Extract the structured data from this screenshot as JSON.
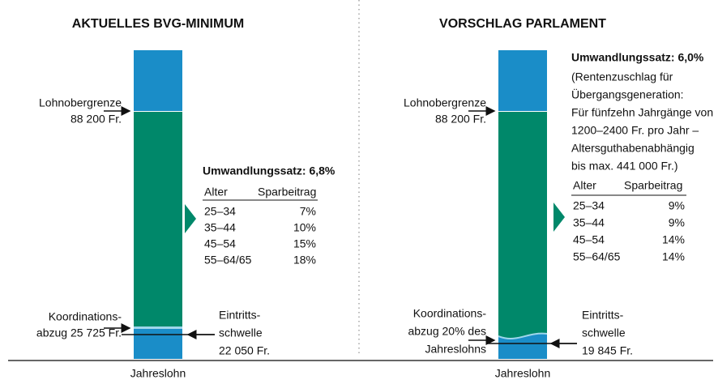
{
  "left": {
    "title": "AKTUELLES BVG-MINIMUM",
    "upper_limit": [
      "Lohnobergrenze",
      "88 200 Fr."
    ],
    "coordination": [
      "Koordinations-",
      "abzug 25 725 Fr."
    ],
    "threshold": [
      "Eintritts-",
      "schwelle",
      "22 050 Fr."
    ],
    "rate": "Umwandlungssatz: 6,8%",
    "table": {
      "header": [
        "Alter",
        "Sparbeitrag"
      ],
      "rows": [
        [
          "25–34",
          "7%"
        ],
        [
          "35–44",
          "10%"
        ],
        [
          "45–54",
          "15%"
        ],
        [
          "55–64/65",
          "18%"
        ]
      ]
    },
    "axis_label": "Jahreslohn"
  },
  "right": {
    "title": "VORSCHLAG PARLAMENT",
    "upper_limit": [
      "Lohnobergrenze",
      "88 200 Fr."
    ],
    "coordination": [
      "Koordinations-",
      "abzug 20% des",
      "Jahreslohns"
    ],
    "threshold": [
      "Eintritts-",
      "schwelle",
      "19 845 Fr."
    ],
    "rate": "Umwandlungssatz: 6,0%",
    "note": [
      "(Rentenzuschlag für",
      "Übergangsgeneration:",
      "Für fünfzehn Jahrgänge von",
      "1200–2400 Fr. pro Jahr –",
      "Altersguthabenabhängig",
      "bis max. 441 000 Fr.)"
    ],
    "table": {
      "header": [
        "Alter",
        "Sparbeitrag"
      ],
      "rows": [
        [
          "25–34",
          "9%"
        ],
        [
          "35–44",
          "9%"
        ],
        [
          "45–54",
          "14%"
        ],
        [
          "55–64/65",
          "14%"
        ]
      ]
    },
    "axis_label": "Jahreslohn"
  }
}
